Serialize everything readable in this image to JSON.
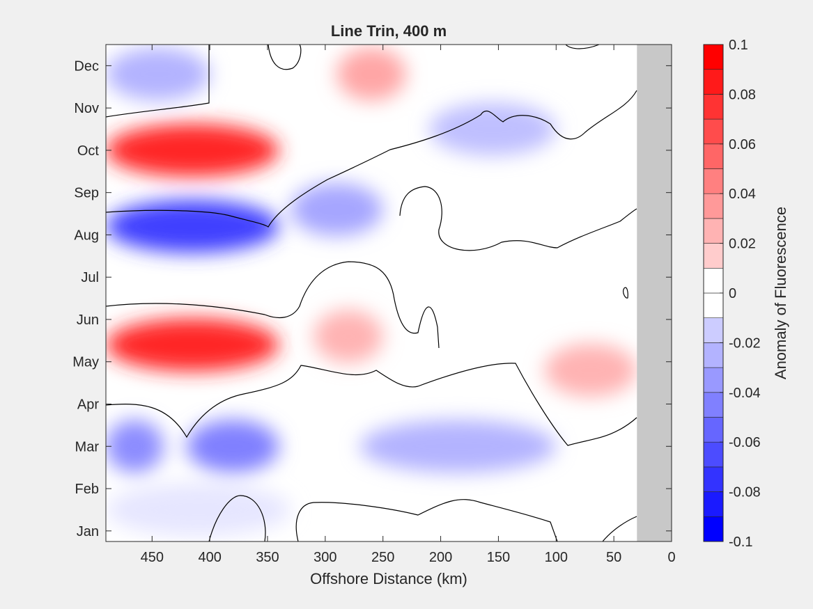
{
  "chart_data": {
    "type": "heatmap",
    "subtype": "filled-contour",
    "title": "Line Trin, 400 m",
    "xlabel": "Offshore Distance (km)",
    "ylabel": "",
    "xlim": [
      0,
      490
    ],
    "x_reversed": true,
    "ylim": [
      "Jan",
      "Dec"
    ],
    "x_ticks": [
      450,
      400,
      350,
      300,
      250,
      200,
      150,
      100,
      50,
      0
    ],
    "x_tick_labels": [
      "450",
      "400",
      "350",
      "300",
      "250",
      "200",
      "150",
      "100",
      "50",
      "0"
    ],
    "y_ticks": [
      1,
      2,
      3,
      4,
      5,
      6,
      7,
      8,
      9,
      10,
      11,
      12
    ],
    "y_tick_labels": [
      "Jan",
      "Feb",
      "Mar",
      "Apr",
      "May",
      "Jun",
      "Jul",
      "Aug",
      "Sep",
      "Oct",
      "Nov",
      "Dec"
    ],
    "no_data_x_range": [
      0,
      30
    ],
    "colorbar": {
      "label": "Anomaly of Fluorescence",
      "levels": [
        -0.1,
        -0.09,
        -0.08,
        -0.07,
        -0.06,
        -0.05,
        -0.04,
        -0.03,
        -0.02,
        -0.01,
        0,
        0.01,
        0.02,
        0.03,
        0.04,
        0.05,
        0.06,
        0.07,
        0.08,
        0.09,
        0.1
      ],
      "tick_values": [
        0.1,
        0.08,
        0.06,
        0.04,
        0.02,
        0,
        -0.02,
        -0.04,
        -0.06,
        -0.08,
        -0.1
      ],
      "tick_labels": [
        "0.1",
        "0.08",
        "0.06",
        "0.04",
        "0.02",
        "0",
        "-0.02",
        "-0.04",
        "-0.06",
        "-0.08",
        "-0.1"
      ]
    },
    "anomaly_features": [
      {
        "month": 1.5,
        "x_from": 330,
        "x_to": 490,
        "value": -0.01
      },
      {
        "month": 3.0,
        "x_from": 340,
        "x_to": 420,
        "value": -0.05
      },
      {
        "month": 3.0,
        "x_from": 440,
        "x_to": 490,
        "value": -0.045
      },
      {
        "month": 3.0,
        "x_from": 100,
        "x_to": 270,
        "value": -0.03
      },
      {
        "month": 5.4,
        "x_from": 340,
        "x_to": 490,
        "value": 0.085
      },
      {
        "month": 5.6,
        "x_from": 250,
        "x_to": 310,
        "value": 0.03
      },
      {
        "month": 8.2,
        "x_from": 340,
        "x_to": 490,
        "value": -0.075
      },
      {
        "month": 8.6,
        "x_from": 250,
        "x_to": 330,
        "value": -0.035
      },
      {
        "month": 10.0,
        "x_from": 340,
        "x_to": 490,
        "value": 0.085
      },
      {
        "month": 10.5,
        "x_from": 100,
        "x_to": 210,
        "value": -0.025
      },
      {
        "month": 11.8,
        "x_from": 230,
        "x_to": 290,
        "value": 0.035
      },
      {
        "month": 11.8,
        "x_from": 400,
        "x_to": 490,
        "value": -0.03
      },
      {
        "month": 4.8,
        "x_from": 30,
        "x_to": 110,
        "value": 0.03
      }
    ],
    "colors": {
      "negative_max": "#0000ff",
      "positive_max": "#ff0000",
      "zero": "#ffffff",
      "no_data": "#c8c8c8",
      "contour": "#000000"
    }
  }
}
